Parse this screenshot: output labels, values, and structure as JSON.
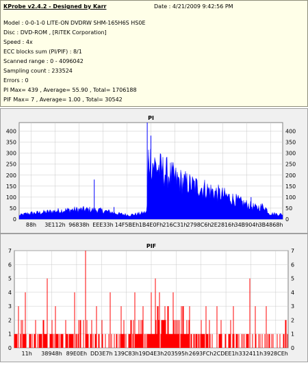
{
  "info": {
    "title": "KProbe v2.4.2 - Designed by Karr",
    "date": "Date : 4/21/2009 9:42:56 PM",
    "lines": [
      "Model : 0-0-1-0 LITE-ON DVDRW SHM-165H6S HS0E",
      "Disc : DVD-ROM , [RiTEK Corporation]",
      "Speed : 4x",
      "ECC blocks sum (PI/PIF) : 8/1",
      "Scanned range : 0 - 4096042",
      "Sampling count : 233524",
      "Errors : 0",
      "PI Max= 439 , Average= 55.90 , Total= 1706188",
      "PIF Max= 7 , Average= 1.00 , Total= 30542"
    ]
  },
  "colors": {
    "pi": "#0000ff",
    "pif": "#ff0000",
    "plot_bg": "#ffffff",
    "grid": "#c8c8c8"
  },
  "chart_data": [
    {
      "type": "area",
      "title": "PI",
      "ylim": [
        0,
        439
      ],
      "yticks": [
        0,
        50,
        100,
        150,
        200,
        250,
        300,
        350,
        400
      ],
      "xtick_labels": [
        "88h",
        "3E112h",
        "96838h",
        "EEE33h",
        "14F5BEh",
        "1B4E0Fh",
        "216C31h",
        "2798C6h",
        "2E2816h",
        "34B904h",
        "3B4868h"
      ],
      "grid": true,
      "profile": [
        [
          0,
          20
        ],
        [
          0.03,
          30
        ],
        [
          0.08,
          35
        ],
        [
          0.15,
          45
        ],
        [
          0.2,
          50
        ],
        [
          0.25,
          52
        ],
        [
          0.3,
          48
        ],
        [
          0.34,
          40
        ],
        [
          0.38,
          28
        ],
        [
          0.42,
          22
        ],
        [
          0.46,
          30
        ],
        [
          0.485,
          38
        ],
        [
          0.49,
          330
        ],
        [
          0.52,
          280
        ],
        [
          0.56,
          250
        ],
        [
          0.6,
          210
        ],
        [
          0.65,
          185
        ],
        [
          0.7,
          165
        ],
        [
          0.75,
          140
        ],
        [
          0.8,
          115
        ],
        [
          0.85,
          85
        ],
        [
          0.9,
          60
        ],
        [
          0.93,
          70
        ],
        [
          0.95,
          30
        ],
        [
          1.0,
          25
        ]
      ],
      "spikes": [
        [
          0.285,
          180
        ],
        [
          0.486,
          439
        ],
        [
          0.5,
          380
        ],
        [
          0.36,
          55
        ],
        [
          0.88,
          100
        ]
      ]
    },
    {
      "type": "bar",
      "title": "PIF",
      "ylim": [
        0,
        7
      ],
      "yticks": [
        0,
        1,
        2,
        3,
        4,
        5,
        6,
        7
      ],
      "xtick_labels": [
        "11h",
        "38948h",
        "89E0Eh",
        "DD3E7h",
        "139C83h",
        "19D4E3h",
        "203595h",
        "2693FCh",
        "2CDEE1h",
        "332411h",
        "3928CEh"
      ],
      "grid": true,
      "density": [
        [
          0,
          0.55
        ],
        [
          0.45,
          0.6
        ],
        [
          0.49,
          0.95
        ],
        [
          0.6,
          0.85
        ],
        [
          0.75,
          0.55
        ],
        [
          1.0,
          0.4
        ]
      ],
      "tall": [
        [
          0.015,
          3
        ],
        [
          0.04,
          4
        ],
        [
          0.12,
          5
        ],
        [
          0.15,
          3
        ],
        [
          0.22,
          4
        ],
        [
          0.26,
          7
        ],
        [
          0.3,
          3
        ],
        [
          0.35,
          4
        ],
        [
          0.39,
          3
        ],
        [
          0.44,
          4
        ],
        [
          0.47,
          3
        ],
        [
          0.5,
          4
        ],
        [
          0.515,
          5
        ],
        [
          0.53,
          4
        ],
        [
          0.55,
          3
        ],
        [
          0.58,
          4
        ],
        [
          0.61,
          3
        ],
        [
          0.64,
          3
        ],
        [
          0.7,
          3
        ],
        [
          0.74,
          3
        ],
        [
          0.8,
          3
        ],
        [
          0.86,
          5
        ],
        [
          0.88,
          3
        ],
        [
          0.92,
          3
        ]
      ]
    }
  ]
}
